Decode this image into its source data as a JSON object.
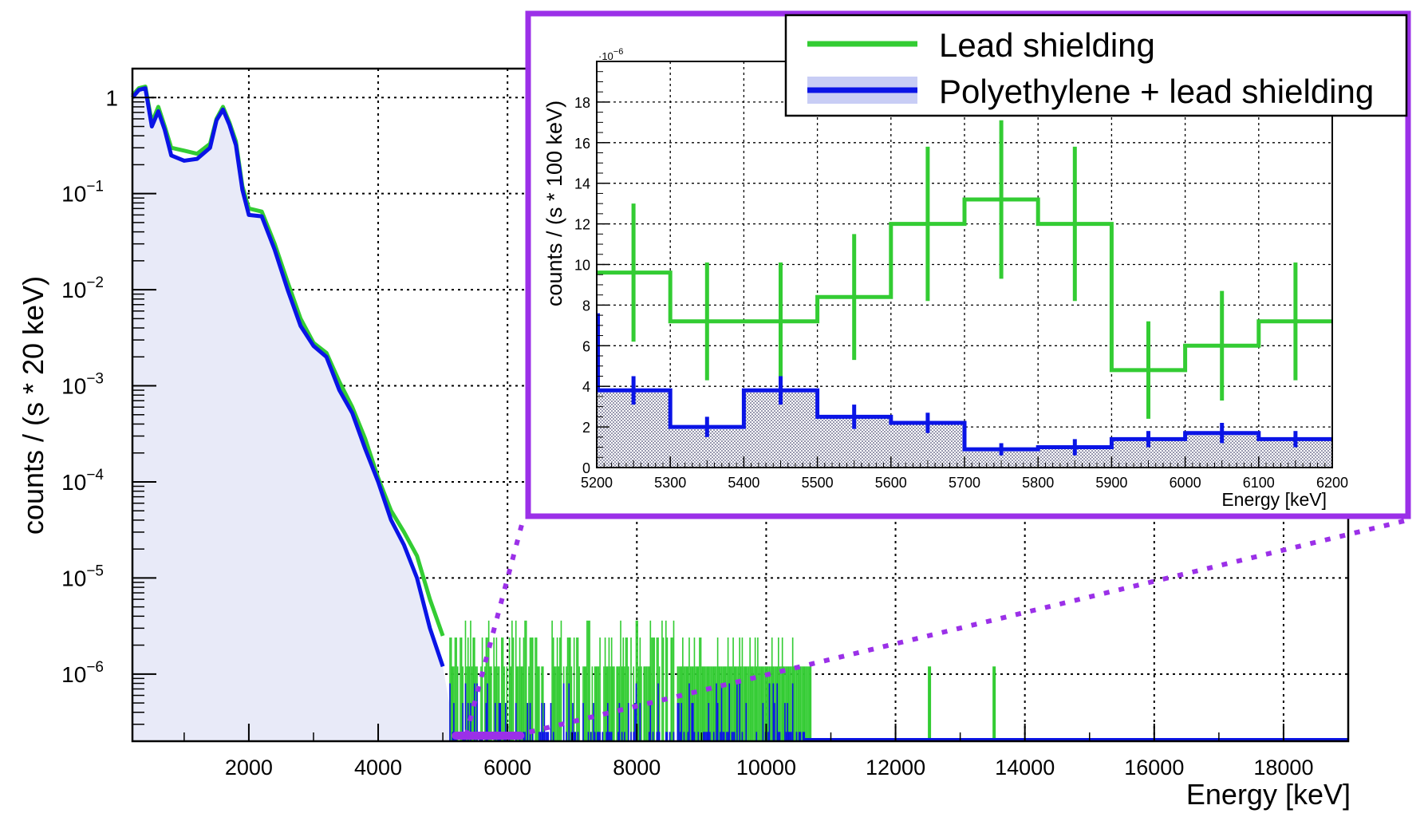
{
  "chart_data": [
    {
      "type": "line",
      "role": "main",
      "title": "",
      "xlabel": "Energy [keV]",
      "ylabel": "counts / (s * 20 keV)",
      "xlim": [
        200,
        19000
      ],
      "ylim_log": [
        2e-07,
        2
      ],
      "yscale": "log",
      "grid": true,
      "x_ticks": [
        2000,
        4000,
        6000,
        8000,
        10000,
        12000,
        14000,
        16000,
        18000
      ],
      "x_tick_labels": [
        "2000",
        "4000",
        "6000",
        "8000",
        "10000",
        "12000",
        "14000",
        "16000",
        "18000"
      ],
      "y_ticks": [
        {
          "value": 1,
          "base": "1",
          "exp": ""
        },
        {
          "value": 0.1,
          "base": "10",
          "exp": "−1"
        },
        {
          "value": 0.01,
          "base": "10",
          "exp": "−2"
        },
        {
          "value": 0.001,
          "base": "10",
          "exp": "−3"
        },
        {
          "value": 0.0001,
          "base": "10",
          "exp": "−4"
        },
        {
          "value": 1e-05,
          "base": "10",
          "exp": "−5"
        },
        {
          "value": 1e-06,
          "base": "10",
          "exp": "−6"
        }
      ],
      "series": [
        {
          "name": "Lead shielding",
          "color": "#33cc33",
          "x": [
            200,
            300,
            400,
            500,
            600,
            700,
            800,
            1000,
            1200,
            1400,
            1500,
            1600,
            1700,
            1800,
            1900,
            2000,
            2200,
            2400,
            2600,
            2800,
            3000,
            3200,
            3400,
            3600,
            3800,
            4000,
            4200,
            4400,
            4600,
            4800,
            5000
          ],
          "y": [
            1.05,
            1.25,
            1.3,
            0.55,
            0.8,
            0.5,
            0.3,
            0.28,
            0.26,
            0.33,
            0.6,
            0.8,
            0.55,
            0.35,
            0.12,
            0.07,
            0.065,
            0.03,
            0.012,
            0.005,
            0.0028,
            0.0022,
            0.0011,
            0.0006,
            0.00028,
            0.00011,
            5e-05,
            3e-05,
            1.7e-05,
            6e-06,
            2.5e-06
          ]
        },
        {
          "name": "Polyethylene + lead shielding",
          "color": "#0a14e6",
          "x": [
            200,
            300,
            400,
            500,
            600,
            700,
            800,
            1000,
            1200,
            1400,
            1500,
            1600,
            1700,
            1800,
            1900,
            2000,
            2200,
            2400,
            2600,
            2800,
            3000,
            3200,
            3400,
            3600,
            3800,
            4000,
            4200,
            4400,
            4600,
            4800,
            5000
          ],
          "y": [
            1.0,
            1.2,
            1.25,
            0.5,
            0.72,
            0.46,
            0.25,
            0.22,
            0.23,
            0.3,
            0.58,
            0.75,
            0.52,
            0.32,
            0.11,
            0.06,
            0.058,
            0.026,
            0.01,
            0.0042,
            0.0026,
            0.002,
            0.0009,
            0.00052,
            0.00022,
            0.0001,
            4e-05,
            2.2e-05,
            1e-05,
            3e-06,
            1.2e-06
          ]
        }
      ],
      "zoom_region": [
        5200,
        6200
      ]
    },
    {
      "type": "bar",
      "role": "inset",
      "title": "",
      "xlabel": "Energy [keV]",
      "ylabel": "counts / (s * 100 keV)",
      "y_scale_label": "·10",
      "y_scale_exp": "−6",
      "xlim": [
        5200,
        6200
      ],
      "ylim": [
        0,
        20
      ],
      "grid": true,
      "x_ticks": [
        5200,
        5300,
        5400,
        5500,
        5600,
        5700,
        5800,
        5900,
        6000,
        6100,
        6200
      ],
      "x_tick_labels": [
        "5200",
        "5300",
        "5400",
        "5500",
        "5600",
        "5700",
        "5800",
        "5900",
        "6000",
        "6100",
        "6200"
      ],
      "y_ticks": [
        0,
        2,
        4,
        6,
        8,
        10,
        12,
        14,
        16,
        18
      ],
      "y_tick_labels": [
        "0",
        "2",
        "4",
        "6",
        "8",
        "10",
        "12",
        "14",
        "16",
        "18"
      ],
      "bin_edges": [
        5200,
        5300,
        5400,
        5500,
        5600,
        5700,
        5800,
        5900,
        6000,
        6100,
        6200
      ],
      "series": [
        {
          "name": "Lead shielding",
          "color": "#33cc33",
          "values": [
            9.6,
            7.2,
            7.2,
            8.4,
            12.0,
            13.2,
            12.0,
            4.8,
            6.0,
            7.2
          ],
          "errors": [
            3.4,
            2.9,
            2.9,
            3.1,
            3.8,
            3.9,
            3.8,
            2.4,
            2.7,
            2.9
          ]
        },
        {
          "name": "Polyethylene + lead shielding",
          "color": "#0a14e6",
          "values": [
            3.8,
            2.0,
            3.8,
            2.5,
            2.2,
            0.9,
            1.0,
            1.4,
            1.7,
            1.4
          ],
          "errors": [
            0.7,
            0.5,
            0.7,
            0.6,
            0.5,
            0.3,
            0.4,
            0.4,
            0.5,
            0.4
          ]
        }
      ]
    }
  ],
  "legend": {
    "items": [
      {
        "label": "Lead shielding",
        "color": "#33cc33"
      },
      {
        "label": "Polyethylene + lead shielding",
        "color": "#0a14e6",
        "fill": "#c8cdf5"
      }
    ]
  },
  "colors": {
    "frame": "#9b30e8",
    "green": "#33cc33",
    "blue": "#0a14e6",
    "blue_fill": "#e8eaf8"
  }
}
